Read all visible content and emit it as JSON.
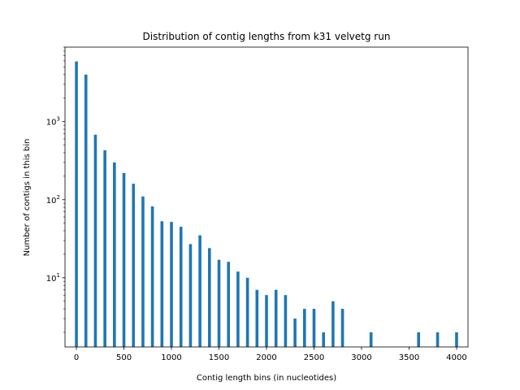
{
  "chart_data": {
    "type": "bar",
    "title": "Distribution of contig lengths from k31 velvetg run",
    "xlabel": "Contig length bins (in nucleotides)",
    "ylabel": "Number of contigs in this bin",
    "x": [
      0,
      100,
      200,
      300,
      400,
      500,
      600,
      700,
      800,
      900,
      1000,
      1100,
      1200,
      1300,
      1400,
      1500,
      1600,
      1700,
      1800,
      1900,
      2000,
      2100,
      2200,
      2300,
      2400,
      2500,
      2600,
      2700,
      2800,
      3100,
      3600,
      3800,
      4000
    ],
    "values": [
      5900,
      4000,
      680,
      430,
      300,
      220,
      160,
      110,
      82,
      53,
      52,
      45,
      27,
      35,
      24,
      17,
      16,
      12,
      10,
      7,
      6,
      7,
      6,
      3,
      4,
      4,
      2,
      5,
      4,
      2,
      2,
      2,
      2
    ],
    "xlim": [
      -120,
      4120
    ],
    "ylim": [
      1.3,
      9000
    ],
    "yscale": "log",
    "x_ticks": [
      "0",
      "500",
      "1000",
      "1500",
      "2000",
      "2500",
      "3000",
      "3500",
      "4000"
    ],
    "y_ticks": [
      {
        "base": "10",
        "exp": "1"
      },
      {
        "base": "10",
        "exp": "2"
      },
      {
        "base": "10",
        "exp": "3"
      }
    ],
    "bar_color": "#1f77b4",
    "grid": false,
    "legend": "none"
  }
}
